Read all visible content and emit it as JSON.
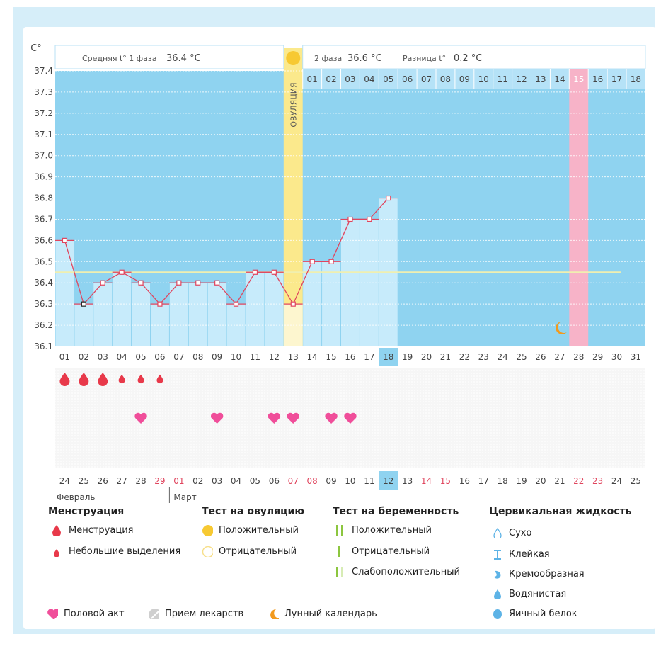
{
  "header": {
    "unit_label": "C°",
    "phase1_label": "Средняя t° 1 фаза",
    "phase1_value": "36.4 °C",
    "phase2_label": "2 фаза",
    "phase2_value": "36.6 °C",
    "diff_label": "Разница t°",
    "diff_value": "0.2 °C",
    "ovulation_label": "ОВУЛЯЦИЯ"
  },
  "phase2_day_numbers": [
    "01",
    "02",
    "03",
    "04",
    "05",
    "06",
    "07",
    "08",
    "09",
    "10",
    "11",
    "12",
    "13",
    "14",
    "15",
    "16",
    "17",
    "18"
  ],
  "chart_data": {
    "type": "line",
    "y_ticks": [
      "37.4",
      "37.3",
      "37.2",
      "37.1",
      "37.0",
      "36.9",
      "36.8",
      "36.7",
      "36.6",
      "36.5",
      "36.4",
      "36.3",
      "36.2",
      "36.1"
    ],
    "ylim": [
      36.1,
      37.4
    ],
    "cycle_days": [
      "01",
      "02",
      "03",
      "04",
      "05",
      "06",
      "07",
      "08",
      "09",
      "10",
      "11",
      "12",
      "13",
      "14",
      "15",
      "16",
      "17",
      "18",
      "19",
      "20",
      "21",
      "22",
      "23",
      "24",
      "25",
      "26",
      "27",
      "28",
      "29",
      "30",
      "31"
    ],
    "temperatures": [
      36.6,
      36.3,
      36.4,
      36.45,
      36.4,
      36.3,
      36.4,
      36.4,
      36.4,
      36.3,
      36.45,
      36.45,
      36.3,
      36.5,
      36.5,
      36.7,
      36.7,
      36.8
    ],
    "coverline": 36.45,
    "ovulation_day": 13,
    "expected_period_day": 28,
    "current_day": 18,
    "moon_day": 27,
    "menstruation_heavy_days": [
      1,
      2,
      3
    ],
    "menstruation_light_days": [
      4,
      5,
      6
    ],
    "intercourse_days": [
      5,
      9,
      12,
      13,
      15,
      16
    ],
    "calendar_dates": [
      "24",
      "25",
      "26",
      "27",
      "28",
      "29",
      "01",
      "02",
      "03",
      "04",
      "05",
      "06",
      "07",
      "08",
      "09",
      "10",
      "11",
      "12",
      "13",
      "14",
      "15",
      "16",
      "17",
      "18",
      "19",
      "20",
      "21",
      "22",
      "23",
      "24",
      "25"
    ],
    "calendar_red_indices": [
      5,
      6,
      12,
      13,
      19,
      20,
      27,
      28
    ],
    "current_date_index": 17,
    "months": [
      "Февраль",
      "Март"
    ]
  },
  "legend": {
    "menstruation": {
      "title": "Менструация",
      "items": [
        "Менструация",
        "Небольшие выделения"
      ]
    },
    "ovulation_test": {
      "title": "Тест на овуляцию",
      "items": [
        "Положительный",
        "Отрицательный"
      ]
    },
    "pregnancy_test": {
      "title": "Тест на беременность",
      "items": [
        "Положительный",
        "Отрицательный",
        "Слабоположительный"
      ]
    },
    "cervical": {
      "title": "Цервикальная жидкость",
      "items": [
        "Сухо",
        "Клейкая",
        "Кремообразная",
        "Водянистая",
        "Яичный белок"
      ]
    },
    "bottom": [
      "Половой акт",
      "Прием лекарств",
      "Лунный календарь"
    ]
  },
  "colors": {
    "background_blue": "#8fd3f0",
    "bar_fill": "#c7ebfb",
    "line": "#e0455e",
    "ovulation": "#fbe98c",
    "period": "#f7b3c8",
    "coverline": "#f0efb0",
    "drop": "#e8394a",
    "heart": "#f04e9a",
    "moon": "#f29a1e",
    "sun": "#f7c932",
    "green": "#8cc63f",
    "fluid": "#5db3e6"
  }
}
